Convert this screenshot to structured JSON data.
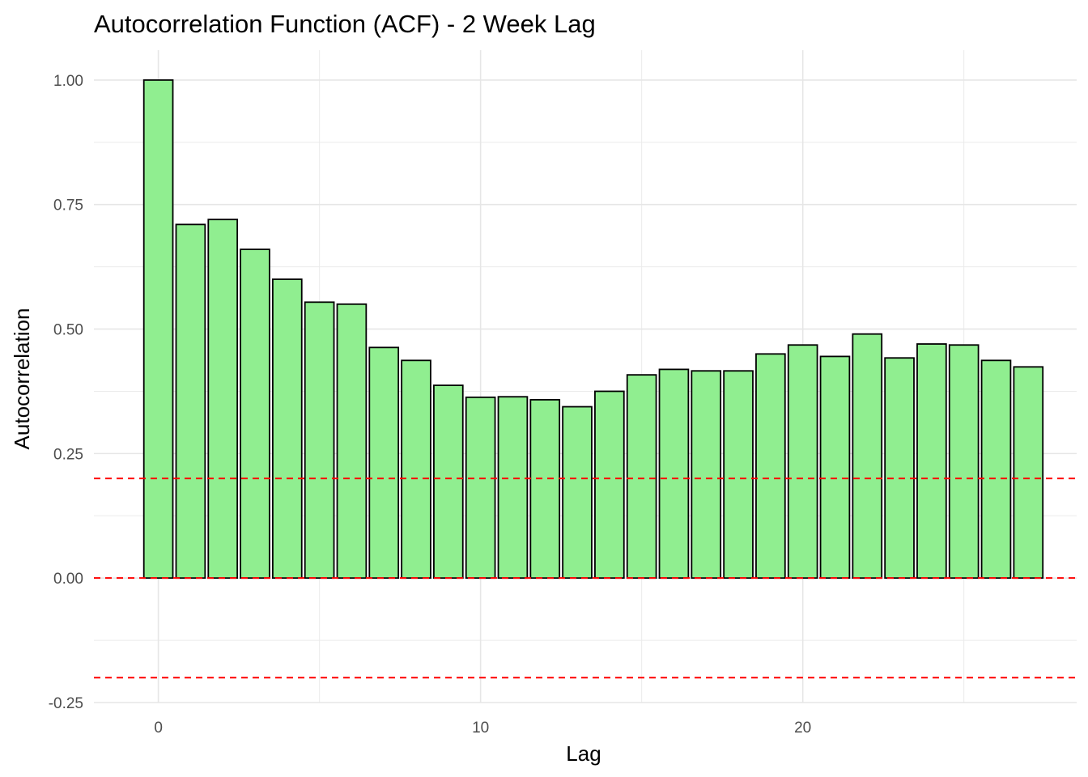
{
  "chart_data": {
    "type": "bar",
    "title": "Autocorrelation Function (ACF) - 2 Week Lag",
    "xlabel": "Lag",
    "ylabel": "Autocorrelation",
    "xlim": [
      -2,
      28.5
    ],
    "ylim": [
      -0.25,
      1.06
    ],
    "x_ticks": [
      {
        "value": 0,
        "label": "0"
      },
      {
        "value": 10,
        "label": "10"
      },
      {
        "value": 20,
        "label": "20"
      }
    ],
    "x_minor_ticks": [
      5,
      15,
      25
    ],
    "y_ticks": [
      {
        "value": 1.0,
        "label": "1.00"
      },
      {
        "value": 0.75,
        "label": "0.75"
      },
      {
        "value": 0.5,
        "label": "0.50"
      },
      {
        "value": 0.25,
        "label": "0.25"
      },
      {
        "value": 0.0,
        "label": "0.00"
      },
      {
        "value": -0.25,
        "label": "-0.25"
      }
    ],
    "y_minor_ticks": [
      0.875,
      0.625,
      0.375,
      0.125,
      -0.125
    ],
    "grid": true,
    "bar_fill": "#90EE90",
    "bar_outline": "#000000",
    "bar_width": 0.9,
    "lags": [
      0,
      1,
      2,
      3,
      4,
      5,
      6,
      7,
      8,
      9,
      10,
      11,
      12,
      13,
      14,
      15,
      16,
      17,
      18,
      19,
      20,
      21,
      22,
      23,
      24,
      25,
      26,
      27
    ],
    "values": [
      1.0,
      0.71,
      0.72,
      0.66,
      0.6,
      0.554,
      0.55,
      0.463,
      0.437,
      0.387,
      0.363,
      0.364,
      0.358,
      0.344,
      0.375,
      0.408,
      0.419,
      0.416,
      0.416,
      0.45,
      0.468,
      0.445,
      0.49,
      0.442,
      0.47,
      0.468,
      0.437,
      0.424
    ],
    "reference_lines": [
      {
        "value": 0.2,
        "color": "#ff0000",
        "style": "dashed"
      },
      {
        "value": 0.0,
        "color": "#ff0000",
        "style": "dashed"
      },
      {
        "value": -0.2,
        "color": "#ff0000",
        "style": "dashed"
      }
    ]
  }
}
